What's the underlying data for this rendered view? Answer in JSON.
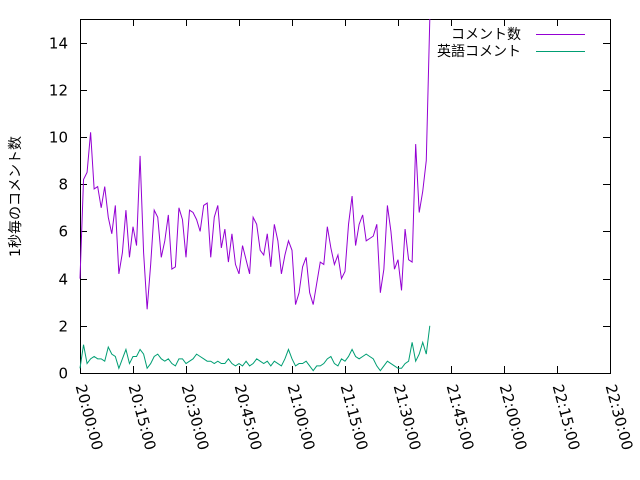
{
  "chart_data": {
    "type": "line",
    "title": "",
    "xlabel": "",
    "ylabel": "1秒毎のコメント数",
    "x_ticks": [
      "20:00:00",
      "20:15:00",
      "20:30:00",
      "20:45:00",
      "21:00:00",
      "21:15:00",
      "21:30:00",
      "21:45:00",
      "22:00:00",
      "22:15:00",
      "22:30:00"
    ],
    "y_ticks": [
      "0",
      "2",
      "4",
      "6",
      "8",
      "10",
      "12",
      "14"
    ],
    "xlim": [
      "20:00:00",
      "22:30:00"
    ],
    "ylim": [
      0,
      15
    ],
    "x_step_minutes": 1,
    "grid": false,
    "legend_position": "top-right",
    "series": [
      {
        "name": "コメント数",
        "color": "#9400d3",
        "values": [
          4.0,
          8.2,
          8.5,
          10.2,
          7.8,
          7.9,
          7.0,
          7.9,
          6.6,
          5.9,
          7.1,
          4.2,
          5.1,
          6.9,
          4.9,
          6.2,
          5.4,
          9.2,
          5.1,
          2.7,
          4.6,
          6.9,
          6.6,
          4.9,
          5.6,
          6.7,
          4.4,
          4.5,
          7.0,
          6.5,
          4.9,
          6.9,
          6.8,
          6.5,
          6.0,
          7.1,
          7.2,
          4.9,
          6.6,
          7.1,
          5.3,
          6.1,
          4.7,
          5.9,
          4.6,
          4.2,
          5.4,
          4.8,
          4.2,
          6.6,
          6.3,
          5.2,
          5.0,
          5.9,
          4.5,
          6.3,
          5.6,
          4.2,
          5.0,
          5.6,
          5.2,
          2.9,
          3.4,
          4.5,
          4.9,
          3.4,
          2.9,
          3.8,
          4.7,
          4.6,
          6.2,
          5.3,
          4.6,
          5.0,
          4.0,
          4.3,
          6.3,
          7.5,
          5.4,
          6.3,
          6.7,
          5.6,
          5.7,
          5.8,
          6.3,
          3.4,
          4.4,
          7.1,
          6.0,
          4.4,
          4.8,
          3.5,
          6.1,
          4.8,
          4.7,
          9.7,
          6.8,
          7.7,
          9.0,
          15.0
        ]
      },
      {
        "name": "英語コメント",
        "color": "#009e73",
        "values": [
          0.2,
          1.2,
          0.4,
          0.6,
          0.7,
          0.6,
          0.6,
          0.5,
          1.1,
          0.8,
          0.7,
          0.2,
          0.6,
          1.0,
          0.4,
          0.7,
          0.7,
          1.0,
          0.8,
          0.2,
          0.4,
          0.7,
          0.8,
          0.6,
          0.5,
          0.6,
          0.4,
          0.3,
          0.6,
          0.6,
          0.4,
          0.5,
          0.6,
          0.8,
          0.7,
          0.6,
          0.5,
          0.5,
          0.4,
          0.5,
          0.4,
          0.4,
          0.6,
          0.4,
          0.3,
          0.4,
          0.3,
          0.5,
          0.3,
          0.4,
          0.6,
          0.5,
          0.4,
          0.5,
          0.3,
          0.5,
          0.4,
          0.3,
          0.6,
          1.0,
          0.6,
          0.3,
          0.4,
          0.4,
          0.5,
          0.3,
          0.1,
          0.3,
          0.3,
          0.4,
          0.6,
          0.7,
          0.4,
          0.3,
          0.6,
          0.5,
          0.7,
          1.0,
          0.7,
          0.6,
          0.7,
          0.8,
          0.7,
          0.6,
          0.3,
          0.1,
          0.3,
          0.5,
          0.4,
          0.3,
          0.2,
          0.2,
          0.4,
          0.5,
          1.3,
          0.5,
          0.8,
          1.3,
          0.8,
          2.0
        ]
      }
    ]
  }
}
